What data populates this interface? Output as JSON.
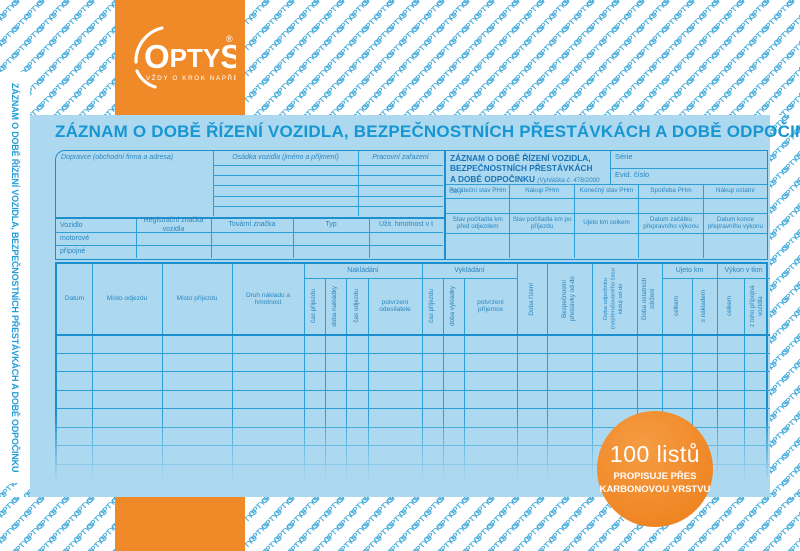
{
  "pattern": {
    "word": "OPTYS"
  },
  "logo": {
    "name": "OPTYS",
    "registered": "®",
    "tagline": "VŽDY O KROK NAPŘED"
  },
  "sidebar": {
    "vertical_title": "ZÁZNAM O DOBĚ ŘÍZENÍ VOZIDLA, BEZPEČNOSTNÍCH PŘESTÁVKÁCH A DOBĚ ODPOČINKU"
  },
  "form": {
    "title": "ZÁZNAM O DOBĚ ŘÍZENÍ VOZIDLA, BEZPEČNOSTNÍCH PŘESTÁVKÁCH A DOBĚ ODPOČINKU",
    "carrier_label": "Dopravce (obchodní firma a adresa)",
    "crew_label": "Osádka vozidla (jméno a příjmení)",
    "job_label": "Pracovní zařazení",
    "info_box": {
      "title_line1": "ZÁZNAM O DOBĚ ŘÍZENÍ VOZIDLA,",
      "title_line2": "BEZPEČNOSTNÍCH PŘESTÁVKÁCH",
      "title_line3": "A DOBĚ ODPOČINKU",
      "decree_note": "(Vyhláška č. 478/2000 Sb.)",
      "series_label": "Série",
      "evidence_label": "Evid. číslo"
    },
    "fuel_row": [
      "Počáteční stav PHm",
      "Nákup PHm",
      "Konečný stav PHm",
      "Spotřeba PHm",
      "Nákup ostatní"
    ],
    "odometer_row": [
      "Stav počítadla km před odjezdem",
      "Stav počítadla km po příjezdu",
      "Ujeto km celkem",
      "Datum začátku přepravního výkonu",
      "Datum konce přepravního výkonu"
    ],
    "vehicle_table": {
      "headers": [
        "Vozidlo",
        "Registrační značka vozidla",
        "Tovární značka",
        "Typ",
        "Užit. hmotnost v t"
      ],
      "rows": [
        "motorové",
        "přípojné"
      ]
    },
    "main_table": {
      "groups": {
        "loading": "Nakládání",
        "unloading": "Vykládání",
        "km": "Ujeto km",
        "output": "Výkon v tkm"
      },
      "cols": {
        "date": "Datum",
        "departure_place": "Místo odjezdu",
        "arrival_place": "Místo příjezdu",
        "cargo": "Druh nákladu a hmotnost",
        "arrival_time_l": "čas příjezdu",
        "loading_time": "doba nakládky",
        "departure_time": "čas odjezdu",
        "sender_confirmation": "potvrzení odesílatele",
        "arrival_time_u": "čas příjezdu",
        "unloading_time": "doba vykládky",
        "receiver_confirmation": "potvrzení příjemce",
        "driving_time": "Doba řízení",
        "safety_breaks": "Bezpečnostní přestávky od-do",
        "rest_time": "Doba odpočinku (nepřerušovaného času klidu) od-do",
        "other_delays": "Doba ostatních zdržení",
        "km_total": "celkem",
        "km_loaded": "s nákladem",
        "output_total": "celkem",
        "output_trailer": "z toho přípojná vozidla"
      },
      "body_row_count": 8,
      "crew_row_count": 5
    }
  },
  "badge": {
    "count": "100 listů",
    "line1": "PROPISUJE PŘES",
    "line2": "KARBONOVOU VRSTVU"
  }
}
